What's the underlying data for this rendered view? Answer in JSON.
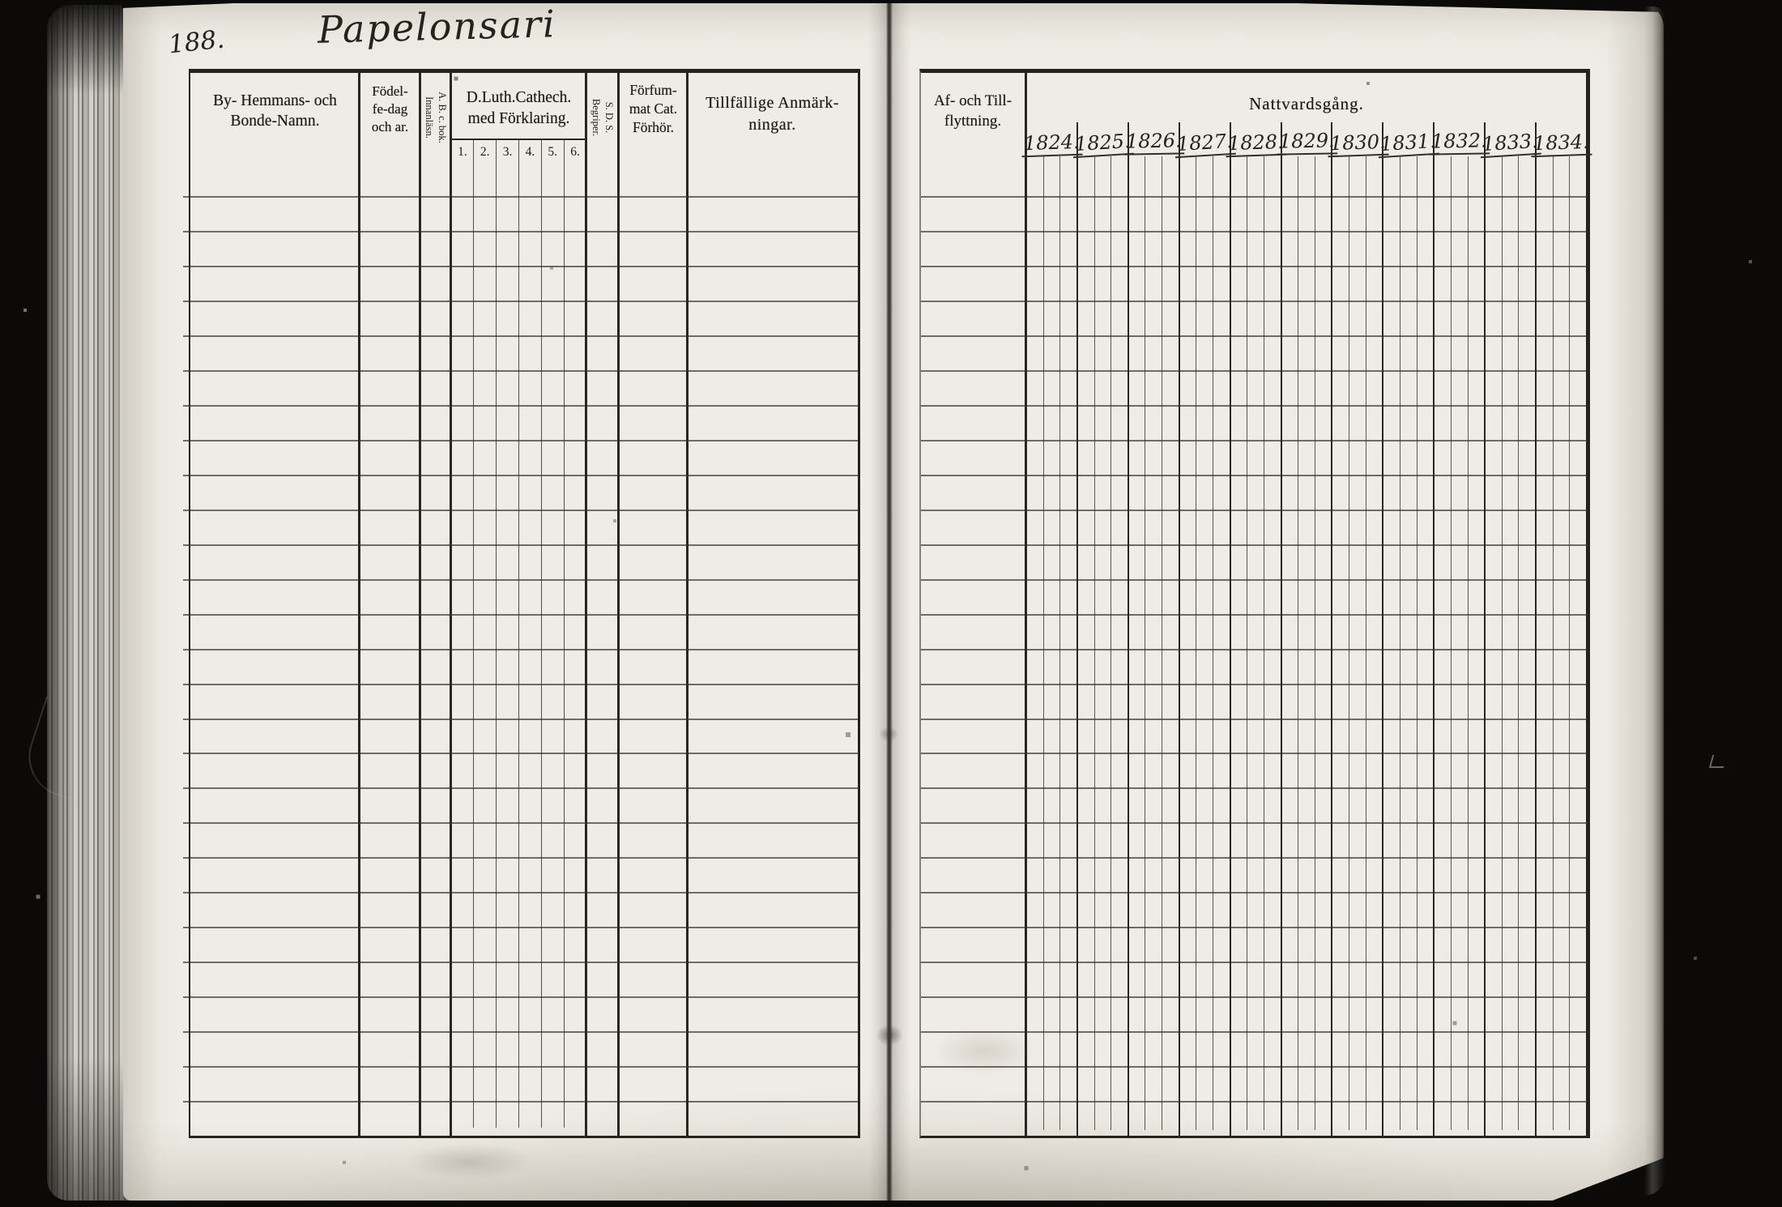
{
  "scan": {
    "page_number": "188.",
    "handwritten_title": "Papelonsari"
  },
  "left_table": {
    "columns": {
      "name": {
        "lines": [
          "By- Hemmans- och",
          "Bonde-Namn."
        ]
      },
      "birth": {
        "lines": [
          "Födel-",
          "fe-dag",
          "och ar."
        ]
      },
      "reading": {
        "rotated_lines": [
          "A. B. c. bok.",
          "Innanläsn."
        ]
      },
      "catechism": {
        "lines": [
          "D.Luth.Cathech.",
          "med Förklaring."
        ],
        "subcolumns": [
          "1.",
          "2.",
          "3.",
          "4.",
          "5.",
          "6."
        ]
      },
      "comprehension": {
        "rotated_lines": [
          "S. D. S.",
          "Begriper."
        ]
      },
      "missed_exams": {
        "lines": [
          "Förfum-",
          "mat Cat.",
          "Förhör."
        ]
      },
      "remarks": {
        "lines": [
          "Tillfällige Anmärk-",
          "ningar."
        ]
      }
    },
    "row_count": 28
  },
  "right_table": {
    "migration": {
      "lines": [
        "Af- och Till-",
        "flyttning."
      ]
    },
    "communion": {
      "title": "Nattvardsgång.",
      "years": [
        "1824.",
        "1825.",
        "1826.",
        "1827.",
        "1828.",
        "1829.",
        "1830.",
        "1831.",
        "1832.",
        "1833.",
        "1834."
      ],
      "subcolumns_per_year": 3
    },
    "row_count": 28
  },
  "colors": {
    "background": "#0b0a09",
    "paper": "#efece5",
    "ink": "#201d1a",
    "rule": "#29251f"
  }
}
